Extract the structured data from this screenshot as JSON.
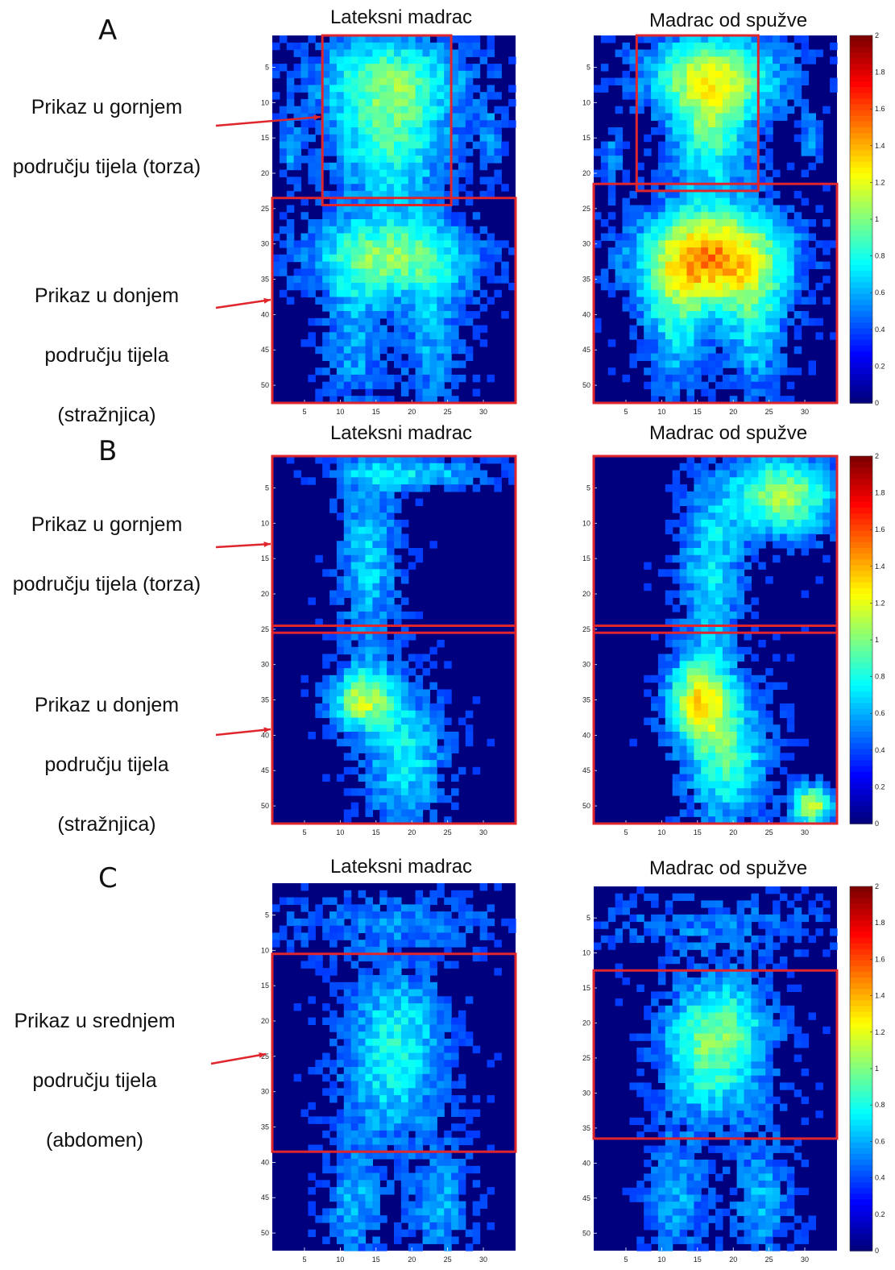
{
  "palette": {
    "heat_low": "#00007f",
    "heat_mid": "#00c8ff",
    "heat_high": "#ffff00",
    "heat_max": "#7f0000",
    "box_red": "#e0262d",
    "arrow_red": "#e0262d"
  },
  "rows": [
    {
      "letter": "A",
      "descriptions": [
        {
          "lines": [
            "Prikaz u gornjem",
            "području tijela (torza)"
          ]
        },
        {
          "lines": [
            "Prikaz u donjem",
            "području tijela",
            "(stražnjica)"
          ]
        }
      ],
      "left_title": "Lateksni madrac",
      "right_title": "Madrac od spužve"
    },
    {
      "letter": "B",
      "descriptions": [
        {
          "lines": [
            "Prikaz u gornjem",
            "području tijela (torza)"
          ]
        },
        {
          "lines": [
            "Prikaz u donjem",
            "području tijela",
            "(stražnjica)"
          ]
        }
      ],
      "left_title": "Lateksni madrac",
      "right_title": "Madrac od spužve"
    },
    {
      "letter": "C",
      "descriptions": [
        {
          "lines": [
            "Prikaz u srednjem",
            "području tijela",
            "(abdomen)"
          ]
        }
      ],
      "left_title": "Lateksni madrac",
      "right_title": "Madrac od spužve"
    }
  ],
  "chart_data": [
    {
      "type": "heatmap",
      "panel": "A",
      "title": "Lateksni madrac",
      "x_ticks": [
        5,
        10,
        15,
        20,
        25,
        30
      ],
      "y_ticks": [
        5,
        10,
        15,
        20,
        25,
        30,
        35,
        40,
        45,
        50
      ],
      "xlim": [
        1,
        34
      ],
      "ylim": [
        1,
        52
      ],
      "regions": [
        {
          "label": "Prikaz u gornjem području tijela (torza)",
          "x": [
            8,
            25
          ],
          "y": [
            1,
            24
          ]
        },
        {
          "label": "Prikaz u donjem području tijela (stražnjica)",
          "x": [
            1,
            34
          ],
          "y": [
            24,
            52
          ]
        }
      ]
    },
    {
      "type": "heatmap",
      "panel": "A",
      "title": "Madrac od spužve",
      "x_ticks": [
        5,
        10,
        15,
        20,
        25,
        30
      ],
      "y_ticks": [
        5,
        10,
        15,
        20,
        25,
        30,
        35,
        40,
        45,
        50
      ],
      "xlim": [
        1,
        34
      ],
      "ylim": [
        1,
        52
      ],
      "colorbar": {
        "min": 0,
        "max": 2,
        "ticks": [
          0,
          0.2,
          0.4,
          0.6,
          0.8,
          1,
          1.2,
          1.4,
          1.6,
          1.8,
          2
        ]
      },
      "regions": [
        {
          "label": "Prikaz u gornjem području tijela (torza)",
          "x": [
            7,
            23
          ],
          "y": [
            1,
            22
          ]
        },
        {
          "label": "Prikaz u donjem području tijela (stražnjica)",
          "x": [
            1,
            34
          ],
          "y": [
            22,
            52
          ]
        }
      ]
    },
    {
      "type": "heatmap",
      "panel": "B",
      "title": "Lateksni madrac",
      "x_ticks": [
        5,
        10,
        15,
        20,
        25,
        30
      ],
      "y_ticks": [
        5,
        10,
        15,
        20,
        25,
        30,
        35,
        40,
        45,
        50
      ],
      "xlim": [
        1,
        34
      ],
      "ylim": [
        1,
        52
      ],
      "regions": [
        {
          "label": "Prikaz u gornjem području tijela (torza)",
          "x": [
            1,
            34
          ],
          "y": [
            1,
            25
          ]
        },
        {
          "label": "Prikaz u donjem području tijela (stražnjica)",
          "x": [
            1,
            34
          ],
          "y": [
            25,
            52
          ]
        }
      ]
    },
    {
      "type": "heatmap",
      "panel": "B",
      "title": "Madrac od spužve",
      "x_ticks": [
        5,
        10,
        15,
        20,
        25,
        30
      ],
      "y_ticks": [
        5,
        10,
        15,
        20,
        25,
        30,
        35,
        40,
        45,
        50
      ],
      "xlim": [
        1,
        34
      ],
      "ylim": [
        1,
        52
      ],
      "colorbar": {
        "min": 0,
        "max": 2,
        "ticks": [
          0,
          0.2,
          0.4,
          0.6,
          0.8,
          1,
          1.2,
          1.4,
          1.6,
          1.8,
          2
        ]
      },
      "regions": [
        {
          "label": "Prikaz u gornjem području tijela (torza)",
          "x": [
            1,
            34
          ],
          "y": [
            1,
            25
          ]
        },
        {
          "label": "Prikaz u donjem području tijela (stražnjica)",
          "x": [
            1,
            34
          ],
          "y": [
            25,
            52
          ]
        }
      ]
    },
    {
      "type": "heatmap",
      "panel": "C",
      "title": "Lateksni madrac",
      "x_ticks": [
        5,
        10,
        15,
        20,
        25,
        30
      ],
      "y_ticks": [
        5,
        10,
        15,
        20,
        25,
        30,
        35,
        40,
        45,
        50
      ],
      "xlim": [
        1,
        34
      ],
      "ylim": [
        1,
        52
      ],
      "regions": [
        {
          "label": "Prikaz u srednjem području tijela (abdomen)",
          "x": [
            1,
            34
          ],
          "y": [
            11,
            38
          ]
        }
      ]
    },
    {
      "type": "heatmap",
      "panel": "C",
      "title": "Madrac od spužve",
      "x_ticks": [
        5,
        10,
        15,
        20,
        25,
        30
      ],
      "y_ticks": [
        5,
        10,
        15,
        20,
        25,
        30,
        35,
        40,
        45,
        50
      ],
      "xlim": [
        1,
        34
      ],
      "ylim": [
        1,
        52
      ],
      "colorbar": {
        "min": 0,
        "max": 2,
        "ticks": [
          0,
          0.2,
          0.4,
          0.6,
          0.8,
          1,
          1.2,
          1.4,
          1.6,
          1.8,
          2
        ]
      },
      "regions": [
        {
          "label": "Prikaz u srednjem području tijela (abdomen)",
          "x": [
            1,
            34
          ],
          "y": [
            13,
            36
          ]
        }
      ]
    }
  ]
}
